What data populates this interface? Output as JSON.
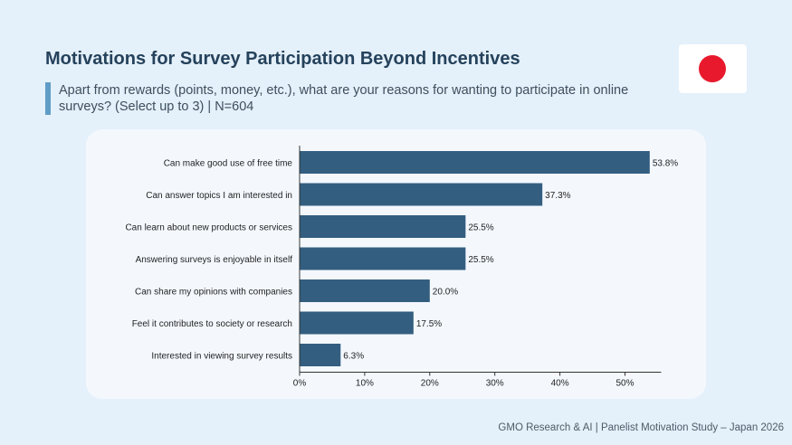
{
  "header": {
    "title": "Motivations for Survey Participation Beyond Incentives",
    "subtitle": "Apart from rewards (points, money, etc.), what are your reasons for wanting to participate in online surveys? (Select up to 3) | N=604"
  },
  "flag": {
    "icon": "japan-flag-icon",
    "disc_color": "#e8192c"
  },
  "footer": {
    "text": "GMO Research & AI | Panelist Motivation Study – Japan 2026"
  },
  "colors": {
    "bar": "#335e80",
    "axis": "#333333",
    "label": "#1f1f1f"
  },
  "chart_data": {
    "type": "bar",
    "orientation": "horizontal",
    "categories": [
      "Can make good use of free time",
      "Can answer topics I am interested in",
      "Can learn about new products or services",
      "Answering surveys is enjoyable in itself",
      "Can share my opinions with companies",
      "Feel it contributes to society or research",
      "Interested in viewing survey results"
    ],
    "values": [
      53.8,
      37.3,
      25.5,
      25.5,
      20.0,
      17.5,
      6.3
    ],
    "value_labels": [
      "53.8%",
      "37.3%",
      "25.5%",
      "25.5%",
      "20.0%",
      "17.5%",
      "6.3%"
    ],
    "xticks": [
      0,
      10,
      20,
      30,
      40,
      50
    ],
    "xtick_labels": [
      "0%",
      "10%",
      "20%",
      "30%",
      "40%",
      "50%"
    ],
    "xlim": [
      0,
      55
    ],
    "grid": false
  }
}
